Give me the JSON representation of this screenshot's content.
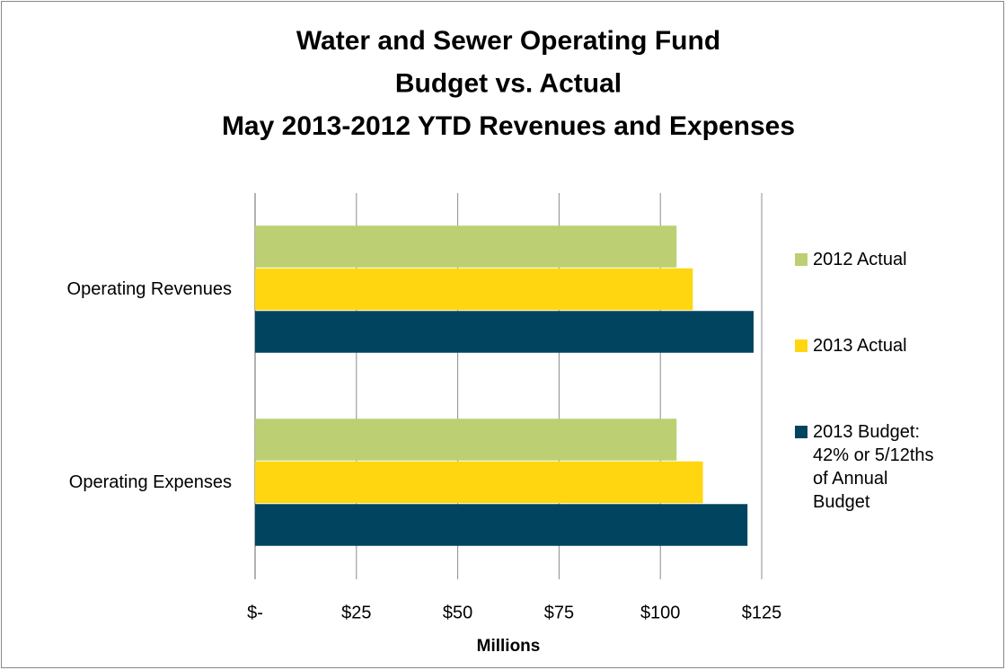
{
  "chart_data": {
    "type": "barh",
    "title": [
      "Water and Sewer Operating Fund",
      "Budget vs. Actual",
      "May 2013-2012 YTD Revenues and Expenses"
    ],
    "x_label": "Millions",
    "categories": [
      "Operating Revenues",
      "Operating Expenses"
    ],
    "series": [
      {
        "name": "2012 Actual",
        "color": "#bccf72",
        "values": [
          104,
          104
        ]
      },
      {
        "name": "2013 Actual",
        "color": "#ffd60f",
        "values": [
          108,
          110.5
        ]
      },
      {
        "name": "2013 Budget: 42% or 5/12ths of Annual Budget",
        "color": "#004460",
        "values": [
          123,
          121.5
        ]
      }
    ],
    "xlim": [
      0,
      125
    ],
    "xticks": [
      {
        "value": 0,
        "label": "$-"
      },
      {
        "value": 25,
        "label": "$25"
      },
      {
        "value": 50,
        "label": "$50"
      },
      {
        "value": 75,
        "label": "$75"
      },
      {
        "value": 100,
        "label": "$100"
      },
      {
        "value": 125,
        "label": "$125"
      }
    ],
    "grid": true,
    "legend": "right"
  }
}
